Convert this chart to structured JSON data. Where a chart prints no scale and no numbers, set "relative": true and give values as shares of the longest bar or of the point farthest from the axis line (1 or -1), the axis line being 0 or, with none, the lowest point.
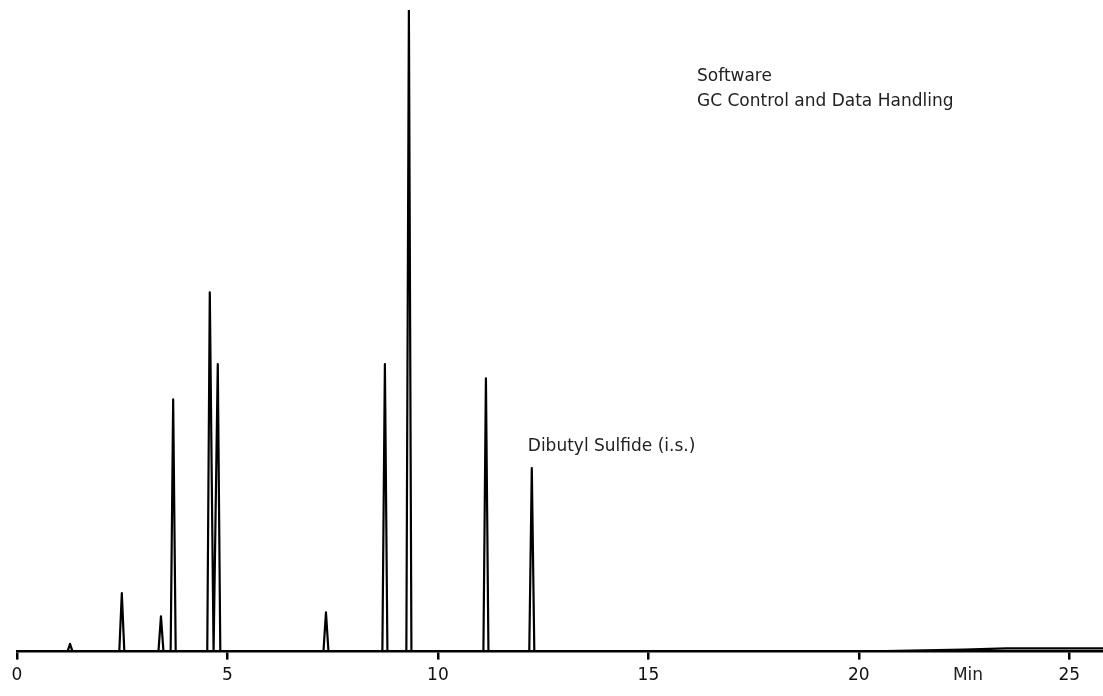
{
  "chart_data": {
    "type": "line",
    "relative": true,
    "xlabel": "Min",
    "xlim": [
      0,
      25.8
    ],
    "xticks": [
      0,
      5,
      10,
      15,
      20,
      25
    ],
    "grid": false,
    "legend": false,
    "marker": "none",
    "line_style": "solid",
    "annotations": [
      "Software",
      "GC Control and Data Handling",
      {
        "text": "Dibutyl Sulfide (i.s.)",
        "x": 12.23,
        "y": 0.286
      }
    ],
    "series": [
      {
        "color": "#000000",
        "x": [
          0,
          1.2,
          1.26,
          1.32,
          2.43,
          2.49,
          2.55,
          3.36,
          3.42,
          3.48,
          3.65,
          3.71,
          3.77,
          4.52,
          4.58,
          4.67,
          4.77,
          4.83,
          7.28,
          7.34,
          7.4,
          8.68,
          8.74,
          8.8,
          9.25,
          9.31,
          9.37,
          11.08,
          11.14,
          11.2,
          12.17,
          12.23,
          12.29,
          20,
          22.5,
          23.5,
          25.8
        ],
        "values": [
          0,
          0,
          0.012,
          0,
          0,
          0.091,
          0,
          0,
          0.055,
          0,
          0,
          0.393,
          0,
          0,
          0.56,
          0,
          0.448,
          0,
          0,
          0.061,
          0,
          0,
          0.448,
          0,
          0,
          1,
          0,
          0,
          0.426,
          0,
          0,
          0.286,
          0,
          0,
          0.003,
          0.005,
          0.005
        ]
      }
    ]
  }
}
